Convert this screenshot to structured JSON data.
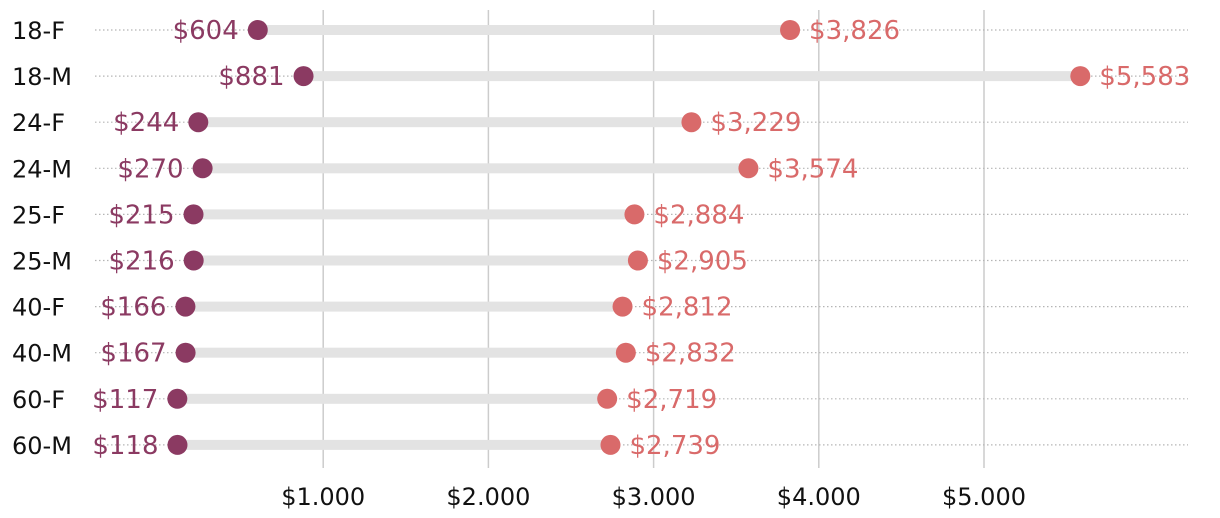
{
  "chart_data": {
    "type": "dumbbell",
    "title": "",
    "xlabel": "",
    "ylabel": "",
    "xlim": [
      0,
      6200
    ],
    "xticks": [
      1000,
      2000,
      3000,
      4000,
      5000
    ],
    "xtick_labels": [
      "$1.000",
      "$2.000",
      "$3.000",
      "$4.000",
      "$5.000"
    ],
    "categories": [
      "18-F",
      "18-M",
      "24-F",
      "24-M",
      "25-F",
      "25-M",
      "40-F",
      "40-M",
      "60-F",
      "60-M"
    ],
    "series": [
      {
        "color": "#8b3a62",
        "values": [
          604,
          881,
          244,
          270,
          215,
          216,
          166,
          167,
          117,
          118
        ],
        "labels": [
          "$604",
          "$881",
          "$244",
          "$270",
          "$215",
          "$216",
          "$166",
          "$167",
          "$117",
          "$118"
        ]
      },
      {
        "color": "#d96a6a",
        "values": [
          3826,
          5583,
          3229,
          3574,
          2884,
          2905,
          2812,
          2832,
          2719,
          2739
        ],
        "labels": [
          "$3,826",
          "$5,583",
          "$3,229",
          "$3,574",
          "$2,884",
          "$2,905",
          "$2,812",
          "$2,832",
          "$2,719",
          "$2,739"
        ]
      }
    ],
    "grid": true,
    "colors": {
      "bar": "#e3e3e3",
      "gridline": "#cccccc",
      "dotted_guide": "#b5b5b5"
    }
  }
}
